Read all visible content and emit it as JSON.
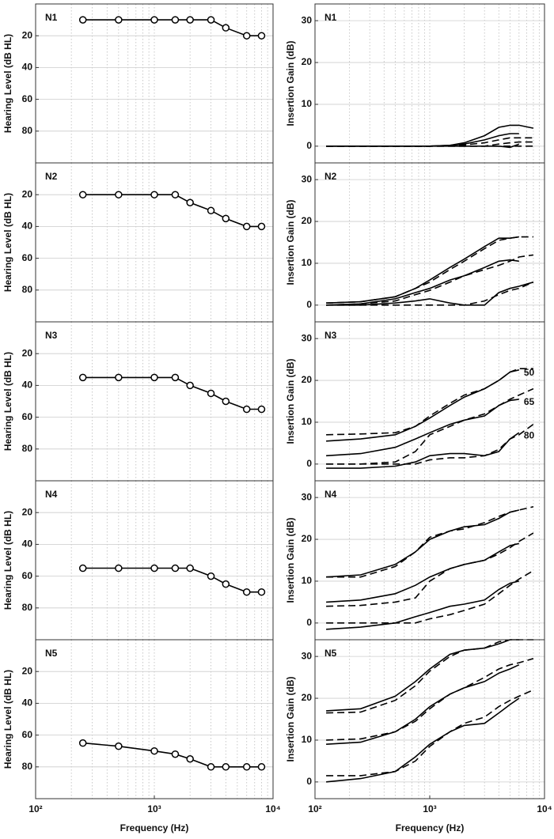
{
  "chart_data": [
    {
      "type": "line",
      "label": "N1",
      "ylabel": "Hearing Level (dB HL)",
      "xscale": "log",
      "xlim": [
        100,
        10000
      ],
      "ylim": [
        100,
        0
      ],
      "yticks": [
        20,
        40,
        60,
        80
      ],
      "grid": true,
      "xgrid": [
        200,
        300,
        400,
        500,
        600,
        700,
        800,
        900,
        1000,
        2000,
        3000,
        4000,
        5000,
        6000,
        7000,
        8000,
        9000
      ],
      "x": [
        250,
        500,
        1000,
        1500,
        2000,
        3000,
        4000,
        6000,
        8000
      ],
      "series": [
        {
          "color": "#000",
          "marker": "circle",
          "values": [
            10,
            10,
            10,
            10,
            10,
            10,
            15,
            20,
            20
          ]
        }
      ]
    },
    {
      "type": "line",
      "label": "N1",
      "ylabel": "Insertion Gain (dB)",
      "xscale": "log",
      "xlim": [
        100,
        10000
      ],
      "ylim": [
        -4,
        34
      ],
      "yticks": [
        0,
        10,
        20,
        30
      ],
      "grid": true,
      "xgrid": [
        200,
        300,
        400,
        500,
        600,
        700,
        800,
        900,
        1000,
        2000,
        3000,
        4000,
        5000,
        6000,
        7000,
        8000,
        9000
      ],
      "x": [
        125,
        250,
        500,
        750,
        1000,
        1500,
        2000,
        3000,
        4000,
        5000,
        6000,
        8000
      ],
      "series": [
        {
          "color": "#000",
          "values": [
            0,
            0,
            0,
            0,
            0,
            0.2,
            0.8,
            2.5,
            4.5,
            5,
            5,
            4.3
          ]
        },
        {
          "color": "#000",
          "dash": true,
          "values": [
            0,
            0,
            0,
            0,
            0,
            0.1,
            0.3,
            0.8,
            1.5,
            2,
            2,
            2
          ]
        },
        {
          "color": "#000",
          "values": [
            0,
            0,
            0,
            0,
            0,
            0.2,
            0.5,
            1.5,
            2.5,
            3,
            3,
            null
          ]
        },
        {
          "color": "#000",
          "dash": true,
          "values": [
            0,
            0,
            0,
            0,
            0,
            0,
            0,
            0,
            0.5,
            0.8,
            1,
            1
          ]
        },
        {
          "color": "#000",
          "values": [
            0,
            0,
            0,
            0,
            0,
            0,
            0,
            0,
            0,
            -0.3,
            0.5,
            null
          ]
        },
        {
          "color": "#000",
          "dash": true,
          "values": [
            0,
            0,
            0,
            0,
            0,
            0,
            0,
            0,
            0,
            0,
            0,
            0
          ]
        }
      ]
    },
    {
      "type": "line",
      "label": "N2",
      "ylabel": "Hearing Level (dB HL)",
      "xscale": "log",
      "xlim": [
        100,
        10000
      ],
      "ylim": [
        100,
        0
      ],
      "yticks": [
        20,
        40,
        60,
        80
      ],
      "grid": true,
      "xgrid": [
        200,
        300,
        400,
        500,
        600,
        700,
        800,
        900,
        1000,
        2000,
        3000,
        4000,
        5000,
        6000,
        7000,
        8000,
        9000
      ],
      "x": [
        250,
        500,
        1000,
        1500,
        2000,
        3000,
        4000,
        6000,
        8000
      ],
      "series": [
        {
          "color": "#000",
          "marker": "circle",
          "values": [
            20,
            20,
            20,
            20,
            25,
            30,
            35,
            40,
            40
          ]
        }
      ]
    },
    {
      "type": "line",
      "label": "N2",
      "ylabel": "Insertion Gain (dB)",
      "xscale": "log",
      "xlim": [
        100,
        10000
      ],
      "ylim": [
        -4,
        34
      ],
      "yticks": [
        0,
        10,
        20,
        30
      ],
      "grid": true,
      "xgrid": [
        200,
        300,
        400,
        500,
        600,
        700,
        800,
        900,
        1000,
        2000,
        3000,
        4000,
        5000,
        6000,
        7000,
        8000,
        9000
      ],
      "x": [
        125,
        250,
        500,
        750,
        1000,
        1500,
        2000,
        3000,
        4000,
        5000,
        6000,
        8000
      ],
      "series": [
        {
          "color": "#000",
          "values": [
            0.5,
            0.8,
            2,
            4,
            6,
            9,
            11,
            14,
            16,
            16,
            16.3,
            null
          ]
        },
        {
          "color": "#000",
          "dash": true,
          "values": [
            0.5,
            0.8,
            2,
            4,
            5.5,
            8.5,
            10.5,
            13.5,
            15.5,
            16,
            16.3,
            16.3
          ]
        },
        {
          "color": "#000",
          "values": [
            0,
            0.3,
            1.5,
            3,
            4,
            6,
            7,
            9,
            10.5,
            10.8,
            10.5,
            null
          ]
        },
        {
          "color": "#000",
          "dash": true,
          "values": [
            0,
            0.3,
            1,
            2.5,
            3.5,
            5.5,
            7,
            8.5,
            9.5,
            10.5,
            11.5,
            12
          ]
        },
        {
          "color": "#000",
          "values": [
            0,
            0,
            0.5,
            1,
            1.5,
            0.5,
            0,
            0,
            3,
            4,
            4.5,
            5.5
          ]
        },
        {
          "color": "#000",
          "dash": true,
          "values": [
            0,
            0,
            0,
            0,
            0,
            0,
            0,
            1,
            2.5,
            3.5,
            4,
            5.5
          ]
        }
      ]
    },
    {
      "type": "line",
      "label": "N3",
      "ylabel": "Hearing Level (dB HL)",
      "xscale": "log",
      "xlim": [
        100,
        10000
      ],
      "ylim": [
        100,
        0
      ],
      "yticks": [
        20,
        40,
        60,
        80
      ],
      "grid": true,
      "xgrid": [
        200,
        300,
        400,
        500,
        600,
        700,
        800,
        900,
        1000,
        2000,
        3000,
        4000,
        5000,
        6000,
        7000,
        8000,
        9000
      ],
      "x": [
        250,
        500,
        1000,
        1500,
        2000,
        3000,
        4000,
        6000,
        8000
      ],
      "series": [
        {
          "color": "#000",
          "marker": "circle",
          "values": [
            35,
            35,
            35,
            35,
            40,
            45,
            50,
            55,
            55
          ]
        }
      ]
    },
    {
      "type": "line",
      "label": "N3",
      "ylabel": "Insertion Gain (dB)",
      "xscale": "log",
      "xlim": [
        100,
        10000
      ],
      "ylim": [
        -4,
        34
      ],
      "yticks": [
        0,
        10,
        20,
        30
      ],
      "grid": true,
      "xgrid": [
        200,
        300,
        400,
        500,
        600,
        700,
        800,
        900,
        1000,
        2000,
        3000,
        4000,
        5000,
        6000,
        7000,
        8000,
        9000
      ],
      "x": [
        125,
        250,
        500,
        750,
        1000,
        1500,
        2000,
        3000,
        4000,
        5000,
        6000,
        8000
      ],
      "series": [
        {
          "name": "50",
          "color": "#000",
          "values": [
            5.5,
            6,
            7,
            9,
            11,
            14,
            16,
            18,
            20,
            22,
            22.5,
            null
          ]
        },
        {
          "color": "#000",
          "dash": true,
          "values": [
            7,
            7.2,
            7.5,
            9,
            11.5,
            14.5,
            16.5,
            18,
            20,
            22,
            22.8,
            22.8
          ]
        },
        {
          "name": "65",
          "color": "#000",
          "values": [
            2,
            2.5,
            4,
            6,
            7.5,
            9.5,
            10.5,
            11.5,
            14,
            15.2,
            15.5,
            null
          ]
        },
        {
          "color": "#000",
          "dash": true,
          "values": [
            0,
            0,
            0.5,
            3,
            7,
            9,
            10.5,
            12,
            14,
            15.5,
            16.5,
            18
          ]
        },
        {
          "name": "80",
          "color": "#000",
          "values": [
            -1,
            -1,
            -0.5,
            0.5,
            2,
            2.5,
            2.5,
            2,
            3,
            6,
            7.5,
            null
          ]
        },
        {
          "color": "#000",
          "dash": true,
          "values": [
            0,
            0,
            0,
            0,
            1,
            1.5,
            1.5,
            2,
            3.5,
            6,
            7,
            9.5
          ]
        }
      ]
    },
    {
      "type": "line",
      "label": "N4",
      "ylabel": "Hearing Level (dB HL)",
      "xscale": "log",
      "xlim": [
        100,
        10000
      ],
      "ylim": [
        100,
        0
      ],
      "yticks": [
        20,
        40,
        60,
        80
      ],
      "grid": true,
      "xgrid": [
        200,
        300,
        400,
        500,
        600,
        700,
        800,
        900,
        1000,
        2000,
        3000,
        4000,
        5000,
        6000,
        7000,
        8000,
        9000
      ],
      "x": [
        250,
        500,
        1000,
        1500,
        2000,
        3000,
        4000,
        6000,
        8000
      ],
      "series": [
        {
          "color": "#000",
          "marker": "circle",
          "values": [
            55,
            55,
            55,
            55,
            55,
            60,
            65,
            70,
            70
          ]
        }
      ]
    },
    {
      "type": "line",
      "label": "N4",
      "ylabel": "Insertion Gain (dB)",
      "xscale": "log",
      "xlim": [
        100,
        10000
      ],
      "ylim": [
        -4,
        34
      ],
      "yticks": [
        0,
        10,
        20,
        30
      ],
      "grid": true,
      "xgrid": [
        200,
        300,
        400,
        500,
        600,
        700,
        800,
        900,
        1000,
        2000,
        3000,
        4000,
        5000,
        6000,
        7000,
        8000,
        9000
      ],
      "x": [
        125,
        250,
        500,
        750,
        1000,
        1500,
        2000,
        3000,
        4000,
        5000,
        6000,
        8000
      ],
      "series": [
        {
          "color": "#000",
          "values": [
            11,
            11.5,
            14,
            17,
            20,
            22,
            23,
            23.5,
            25,
            26.5,
            27,
            null
          ]
        },
        {
          "color": "#000",
          "dash": true,
          "values": [
            11,
            11,
            13.5,
            17,
            20.5,
            22,
            22.5,
            24,
            25.5,
            26.5,
            27,
            27.8
          ]
        },
        {
          "color": "#000",
          "values": [
            5,
            5.5,
            7,
            9,
            11,
            13,
            14,
            15,
            17,
            18.5,
            19,
            null
          ]
        },
        {
          "color": "#000",
          "dash": true,
          "values": [
            4,
            4.2,
            5,
            6,
            10,
            13,
            14,
            15,
            16.5,
            18,
            19.5,
            21.5
          ]
        },
        {
          "color": "#000",
          "values": [
            -1.5,
            -1,
            0,
            1.5,
            2.5,
            4,
            4.5,
            5.5,
            8,
            9.5,
            10,
            null
          ]
        },
        {
          "color": "#000",
          "dash": true,
          "values": [
            0,
            0,
            0,
            0,
            1,
            2,
            3,
            4.5,
            7,
            9,
            10.5,
            12.5
          ]
        }
      ]
    },
    {
      "type": "line",
      "label": "N5",
      "ylabel": "Hearing Level (dB HL)",
      "xlabel": "Frequency (Hz)",
      "xscale": "log",
      "xlim": [
        100,
        10000
      ],
      "ylim": [
        100,
        0
      ],
      "yticks": [
        20,
        40,
        60,
        80
      ],
      "xticks": [
        {
          "value": 100,
          "label": "10²"
        },
        {
          "value": 1000,
          "label": "10³"
        },
        {
          "value": 10000,
          "label": "10⁴"
        }
      ],
      "grid": true,
      "xgrid": [
        200,
        300,
        400,
        500,
        600,
        700,
        800,
        900,
        1000,
        2000,
        3000,
        4000,
        5000,
        6000,
        7000,
        8000,
        9000
      ],
      "x": [
        250,
        500,
        1000,
        1500,
        2000,
        3000,
        4000,
        6000,
        8000
      ],
      "series": [
        {
          "color": "#000",
          "marker": "circle",
          "values": [
            65,
            67,
            70,
            72,
            75,
            80,
            80,
            80,
            80
          ]
        }
      ]
    },
    {
      "type": "line",
      "label": "N5",
      "ylabel": "Insertion Gain (dB)",
      "xlabel": "Frequency (Hz)",
      "xscale": "log",
      "xlim": [
        100,
        10000
      ],
      "ylim": [
        -4,
        34
      ],
      "yticks": [
        0,
        10,
        20,
        30
      ],
      "xticks": [
        {
          "value": 100,
          "label": "10²"
        },
        {
          "value": 1000,
          "label": "10³"
        },
        {
          "value": 10000,
          "label": "10⁴"
        }
      ],
      "grid": true,
      "xgrid": [
        200,
        300,
        400,
        500,
        600,
        700,
        800,
        900,
        1000,
        2000,
        3000,
        4000,
        5000,
        6000,
        7000,
        8000,
        9000
      ],
      "x": [
        125,
        250,
        500,
        750,
        1000,
        1500,
        2000,
        3000,
        4000,
        5000,
        6000,
        8000
      ],
      "series": [
        {
          "color": "#000",
          "values": [
            17,
            17.5,
            20.5,
            24,
            27,
            30.5,
            31.5,
            32,
            33,
            34,
            34,
            null
          ]
        },
        {
          "color": "#000",
          "dash": true,
          "values": [
            16.5,
            16.7,
            19.5,
            23,
            26.5,
            30,
            31.5,
            32,
            33.5,
            34,
            34,
            34
          ]
        },
        {
          "color": "#000",
          "values": [
            9,
            9.5,
            12,
            15,
            18,
            21,
            22.5,
            24,
            26,
            27,
            28,
            null
          ]
        },
        {
          "color": "#000",
          "dash": true,
          "values": [
            10,
            10.3,
            12,
            14.5,
            17.5,
            21,
            22.5,
            25,
            27,
            28,
            28.5,
            29.5
          ]
        },
        {
          "color": "#000",
          "values": [
            0,
            0.8,
            2.5,
            6,
            9,
            12,
            13.5,
            14,
            16.5,
            18.5,
            20,
            null
          ]
        },
        {
          "color": "#000",
          "dash": true,
          "values": [
            1.5,
            1.5,
            2.5,
            5,
            8.5,
            12,
            14,
            15.5,
            18,
            19.5,
            20.5,
            22
          ]
        }
      ]
    }
  ]
}
